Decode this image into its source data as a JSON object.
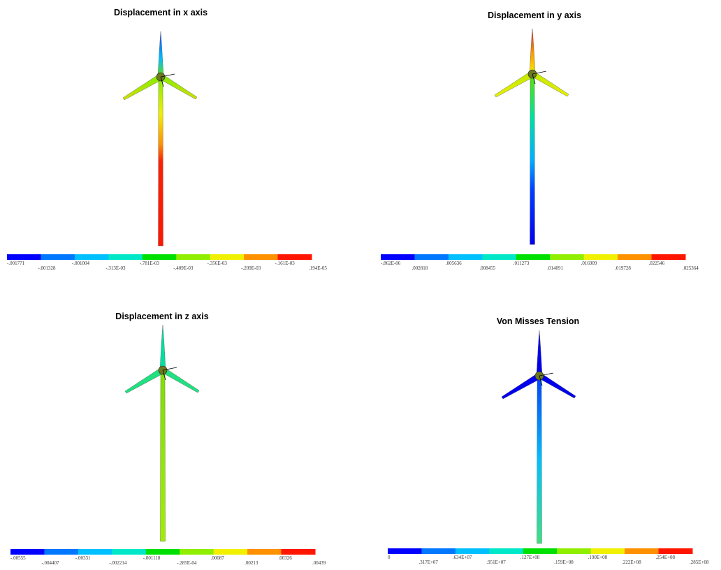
{
  "panels": [
    {
      "title": "Displacement in x axis",
      "legend": [
        "-.001771",
        "-.001328",
        "-.001004",
        "-.313E-03",
        "-.781E-03",
        "-.409E-03",
        "-.356E-03",
        "-.209E-03",
        "-.161E-03",
        ".194E-05"
      ]
    },
    {
      "title": "Displacement in y axis",
      "legend": [
        "-.862E-06",
        ".002818",
        ".005636",
        ".008455",
        ".011273",
        ".014091",
        ".016909",
        ".019728",
        ".022546",
        ".025364"
      ]
    },
    {
      "title": "Displacement in z axis",
      "legend": [
        "-.00555",
        "-.004407",
        "-.00331",
        "-.002214",
        "-.001118",
        "-.285E-04",
        ".00087",
        ".00213",
        ".00326",
        ".00439"
      ]
    },
    {
      "title": "Von Misses Tension",
      "legend": [
        "0",
        ".317E+07",
        ".634E+07",
        ".951E+07",
        ".127E+08",
        ".159E+08",
        ".190E+08",
        ".222E+08",
        ".254E+08",
        ".285E+08"
      ]
    }
  ]
}
